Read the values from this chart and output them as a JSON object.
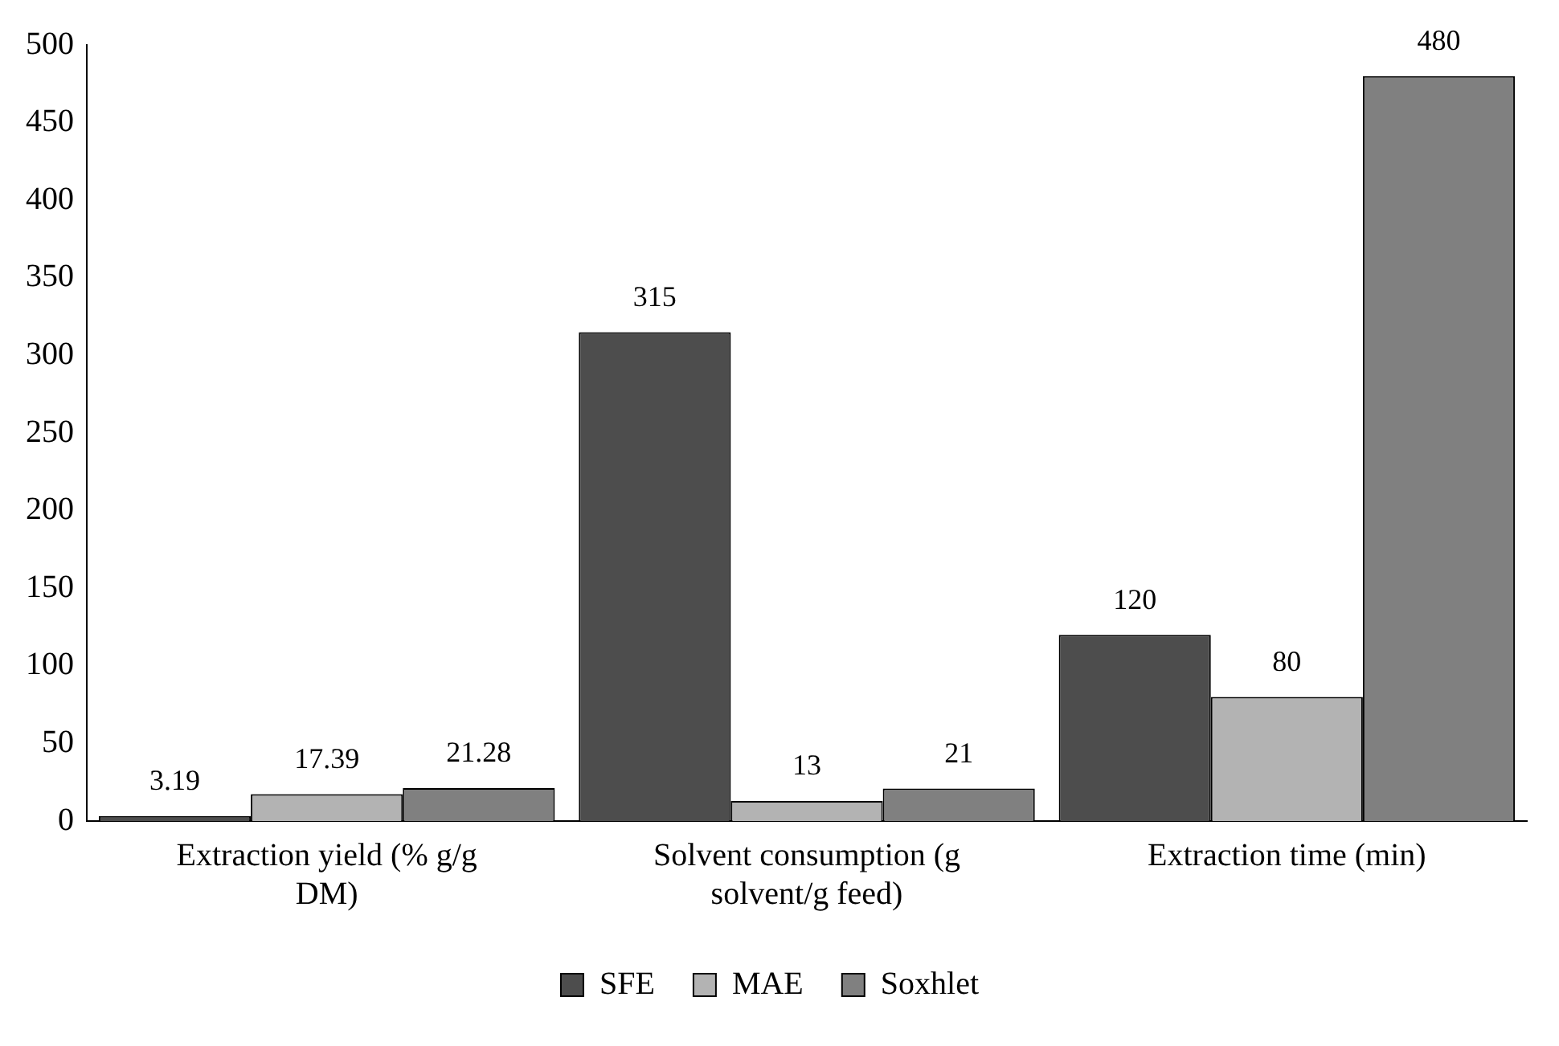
{
  "chart_data": {
    "type": "bar",
    "categories": [
      "Extraction yield (% g/g DM)",
      "Solvent consumption (g solvent/g feed)",
      "Extraction time (min)"
    ],
    "series": [
      {
        "name": "SFE",
        "color": "#4d4d4d",
        "values": [
          3.19,
          315,
          120
        ]
      },
      {
        "name": "MAE",
        "color": "#b3b3b3",
        "values": [
          17.39,
          13,
          80
        ]
      },
      {
        "name": "Soxhlet",
        "color": "#808080",
        "values": [
          21.28,
          21,
          480
        ]
      }
    ],
    "ylim": [
      0,
      500
    ],
    "yticks": [
      0,
      50,
      100,
      150,
      200,
      250,
      300,
      350,
      400,
      450,
      500
    ],
    "grid": false,
    "legend": "bottom",
    "data_labels": true
  }
}
